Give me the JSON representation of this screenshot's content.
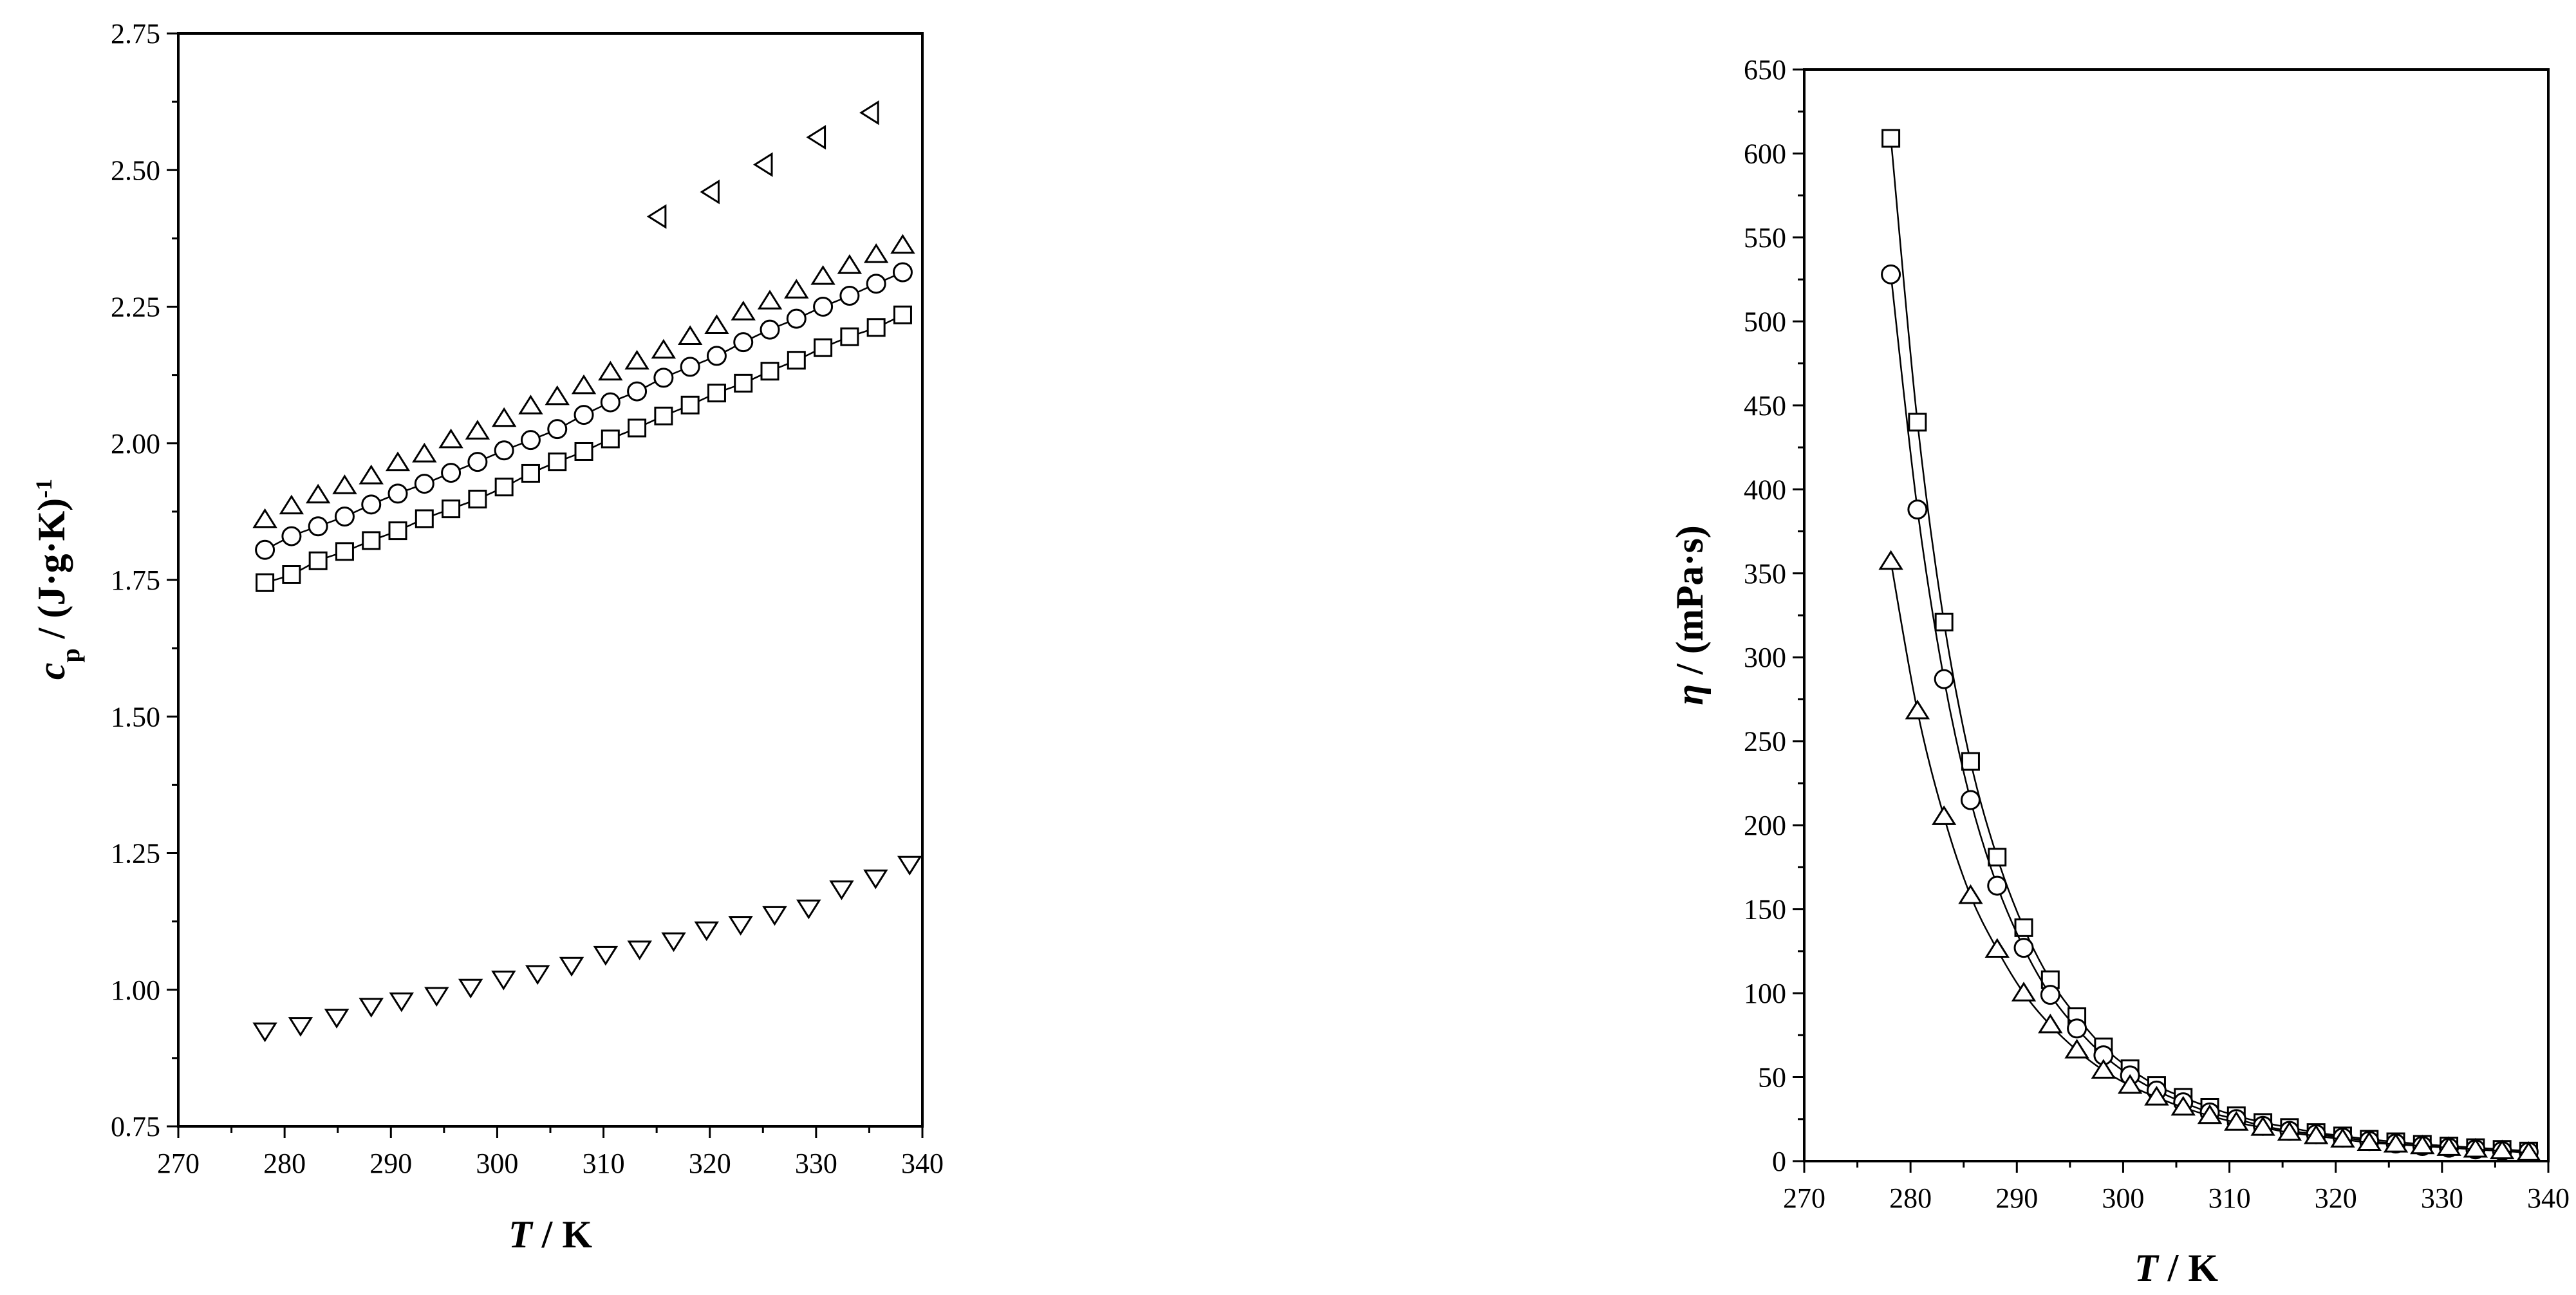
{
  "chart_data": [
    {
      "type": "scatter",
      "xlabel_main": "T",
      "xlabel_unit": " / K",
      "ylabel_symbol": "c",
      "ylabel_sub": "p",
      "ylabel_unit": " / (J·g·K)",
      "ylabel_sup": "-1",
      "xlim": [
        270,
        340
      ],
      "ylim": [
        0.75,
        2.75
      ],
      "xticks": [
        "270",
        "280",
        "290",
        "300",
        "310",
        "320",
        "330",
        "340"
      ],
      "yticks": [
        "0.75",
        "1.00",
        "1.25",
        "1.50",
        "1.75",
        "2.00",
        "2.25",
        "2.50",
        "2.75"
      ],
      "grid": false,
      "series": [
        {
          "marker": "square",
          "line": true,
          "x": [
            278.15,
            280.65,
            283.15,
            285.65,
            288.15,
            290.65,
            293.15,
            295.65,
            298.15,
            300.65,
            303.15,
            305.65,
            308.15,
            310.65,
            313.15,
            315.65,
            318.15,
            320.65,
            323.15,
            325.65,
            328.15,
            330.65,
            333.15,
            335.65,
            338.15
          ],
          "y": [
            1.745,
            1.76,
            1.785,
            1.802,
            1.822,
            1.84,
            1.862,
            1.88,
            1.898,
            1.92,
            1.945,
            1.966,
            1.985,
            2.008,
            2.028,
            2.05,
            2.07,
            2.092,
            2.11,
            2.132,
            2.152,
            2.175,
            2.195,
            2.212,
            2.235
          ]
        },
        {
          "marker": "circle",
          "line": true,
          "x": [
            278.15,
            280.65,
            283.15,
            285.65,
            288.15,
            290.65,
            293.15,
            295.65,
            298.15,
            300.65,
            303.15,
            305.65,
            308.15,
            310.65,
            313.15,
            315.65,
            318.15,
            320.65,
            323.15,
            325.65,
            328.15,
            330.65,
            333.15,
            335.65,
            338.15
          ],
          "y": [
            1.805,
            1.83,
            1.848,
            1.866,
            1.888,
            1.908,
            1.926,
            1.946,
            1.966,
            1.987,
            2.006,
            2.026,
            2.052,
            2.075,
            2.095,
            2.12,
            2.14,
            2.16,
            2.185,
            2.208,
            2.228,
            2.25,
            2.27,
            2.292,
            2.313
          ]
        },
        {
          "marker": "triangle-up",
          "line": false,
          "x": [
            278.15,
            280.65,
            283.15,
            285.65,
            288.15,
            290.65,
            293.15,
            295.65,
            298.15,
            300.65,
            303.15,
            305.65,
            308.15,
            310.65,
            313.15,
            315.65,
            318.15,
            320.65,
            323.15,
            325.65,
            328.15,
            330.65,
            333.15,
            335.65,
            338.15
          ],
          "y": [
            1.86,
            1.885,
            1.905,
            1.922,
            1.94,
            1.964,
            1.98,
            2.006,
            2.022,
            2.045,
            2.068,
            2.085,
            2.105,
            2.13,
            2.15,
            2.17,
            2.195,
            2.215,
            2.24,
            2.26,
            2.28,
            2.305,
            2.325,
            2.345,
            2.362
          ]
        },
        {
          "marker": "triangle-down",
          "line": false,
          "x": [
            278.15,
            281.5,
            284.9,
            288.15,
            291.0,
            294.3,
            297.5,
            300.6,
            303.8,
            307.0,
            310.2,
            313.4,
            316.6,
            319.7,
            322.9,
            326.1,
            329.3,
            332.4,
            335.6,
            338.8
          ],
          "y": [
            0.925,
            0.935,
            0.95,
            0.97,
            0.98,
            0.99,
            1.005,
            1.02,
            1.03,
            1.045,
            1.065,
            1.075,
            1.09,
            1.11,
            1.12,
            1.138,
            1.15,
            1.185,
            1.205,
            1.23
          ]
        },
        {
          "marker": "triangle-left",
          "line": false,
          "x": [
            315.15,
            320.15,
            325.15,
            330.15,
            335.15
          ],
          "y": [
            2.415,
            2.46,
            2.51,
            2.56,
            2.605
          ]
        }
      ]
    },
    {
      "type": "scatter",
      "xlabel_main": "T",
      "xlabel_unit": " / K",
      "ylabel_symbol": "η",
      "ylabel_unit": " / (mPa·s)",
      "xlim": [
        270,
        340
      ],
      "ylim": [
        0,
        650
      ],
      "xticks": [
        "270",
        "280",
        "290",
        "300",
        "310",
        "320",
        "330",
        "340"
      ],
      "yticks": [
        "0",
        "50",
        "100",
        "150",
        "200",
        "250",
        "300",
        "350",
        "400",
        "450",
        "500",
        "550",
        "600",
        "650"
      ],
      "grid": false,
      "series": [
        {
          "marker": "square",
          "line": true,
          "x": [
            278.15,
            280.65,
            283.15,
            285.65,
            288.15,
            290.65,
            293.15,
            295.65,
            298.15,
            300.65,
            303.15,
            305.65,
            308.15,
            310.65,
            313.15,
            315.65,
            318.15,
            320.65,
            323.15,
            325.65,
            328.15,
            330.65,
            333.15,
            335.65,
            338.15
          ],
          "y": [
            609,
            440,
            321,
            238,
            181,
            139,
            108,
            86,
            68,
            55,
            45,
            38,
            32,
            27,
            23,
            20,
            17,
            15,
            13,
            11.5,
            10,
            9,
            8,
            7,
            6
          ]
        },
        {
          "marker": "circle",
          "line": true,
          "x": [
            278.15,
            280.65,
            283.15,
            285.65,
            288.15,
            290.65,
            293.15,
            295.65,
            298.15,
            300.65,
            303.15,
            305.65,
            308.15,
            310.65,
            313.15,
            315.65,
            318.15,
            320.65,
            323.15,
            325.65,
            328.15,
            330.65,
            333.15,
            335.65,
            338.15
          ],
          "y": [
            528,
            388,
            287,
            215,
            164,
            127,
            99,
            79,
            63,
            51,
            42,
            35,
            29,
            25,
            21,
            18,
            16,
            14,
            12,
            10.5,
            9,
            8,
            7,
            6,
            5.5
          ]
        },
        {
          "marker": "triangle-up",
          "line": true,
          "x": [
            278.15,
            280.65,
            283.15,
            285.65,
            288.15,
            290.65,
            293.15,
            295.65,
            298.15,
            300.65,
            303.15,
            305.65,
            308.15,
            310.65,
            313.15,
            315.65,
            318.15,
            320.65,
            323.15,
            325.65,
            328.15,
            330.65,
            333.15,
            335.65,
            338.15
          ],
          "y": [
            357,
            268,
            205,
            158,
            126,
            100,
            81,
            66,
            54,
            45,
            38,
            32,
            27,
            23,
            20,
            17,
            15,
            13,
            11,
            10,
            9,
            8,
            7,
            6,
            5
          ]
        }
      ]
    }
  ]
}
